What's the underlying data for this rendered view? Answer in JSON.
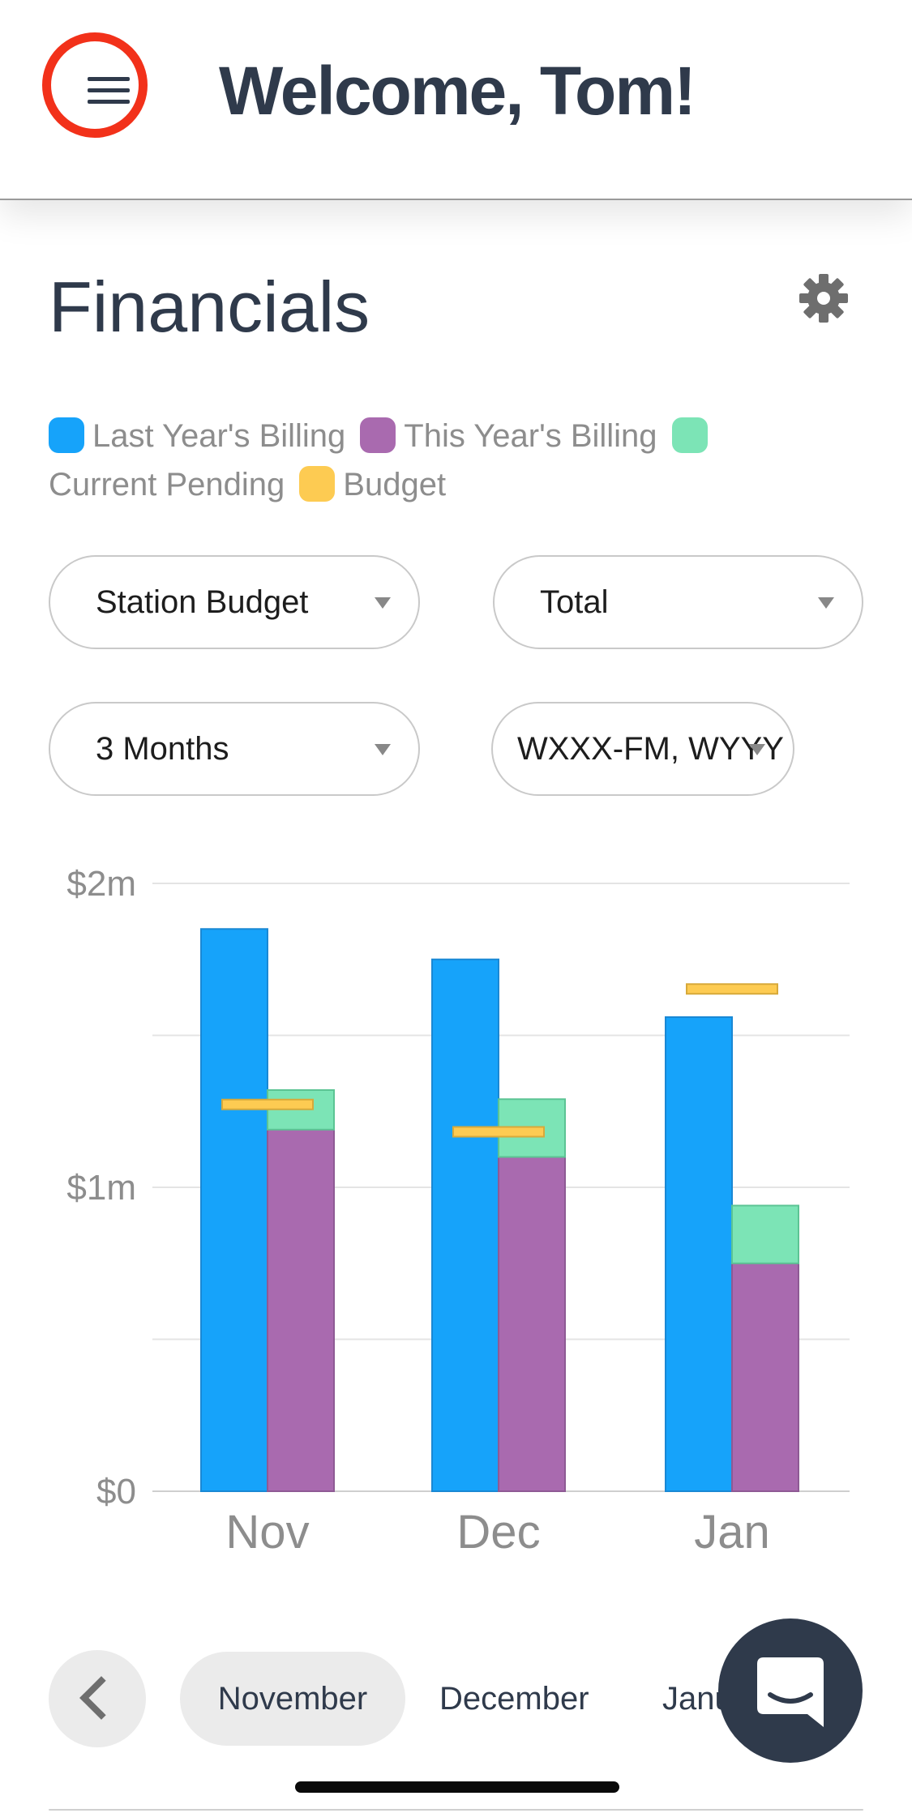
{
  "header": {
    "title": "Welcome, Tom!",
    "menu_icon": "hamburger-icon"
  },
  "page": {
    "title": "Financials",
    "settings_icon": "gear-icon"
  },
  "legend": [
    {
      "label": "Last Year's Billing",
      "color": "#16a3fa"
    },
    {
      "label": "This Year's Billing",
      "color": "#a96aaf"
    },
    {
      "label": "Current Pending",
      "color": "#7ce4b6"
    },
    {
      "label": "Budget",
      "color": "#fdcb52"
    }
  ],
  "filters": {
    "budget_type": "Station Budget",
    "measure": "Total",
    "period": "3 Months",
    "stations": "WXXX-FM, WYYY"
  },
  "chart_data": {
    "type": "bar",
    "categories": [
      "Nov",
      "Dec",
      "Jan"
    ],
    "series": [
      {
        "name": "Last Year's Billing",
        "values": [
          1.85,
          1.75,
          1.56
        ]
      },
      {
        "name": "This Year's Billing",
        "values": [
          1.19,
          1.1,
          0.75
        ]
      },
      {
        "name": "Current Pending",
        "values": [
          0.13,
          0.19,
          0.19
        ]
      },
      {
        "name": "Budget",
        "values": [
          1.27,
          1.18,
          1.65
        ]
      }
    ],
    "y_ticks": [
      {
        "value": 2,
        "label": "$2m"
      },
      {
        "value": 1,
        "label": "$1m"
      },
      {
        "value": 0,
        "label": "$0"
      }
    ],
    "ylim": [
      0,
      2
    ],
    "grid": true,
    "unit": "millions USD",
    "colors": {
      "last_year": "#16a3fa",
      "this_year": "#a96aaf",
      "pending": "#7ce4b6",
      "budget": "#fdcb52"
    }
  },
  "bottom_nav": {
    "back_icon": "chevron-left-icon",
    "months": [
      "November",
      "December",
      "January"
    ],
    "active": "November"
  },
  "chat_icon": "chat-bubble-icon"
}
